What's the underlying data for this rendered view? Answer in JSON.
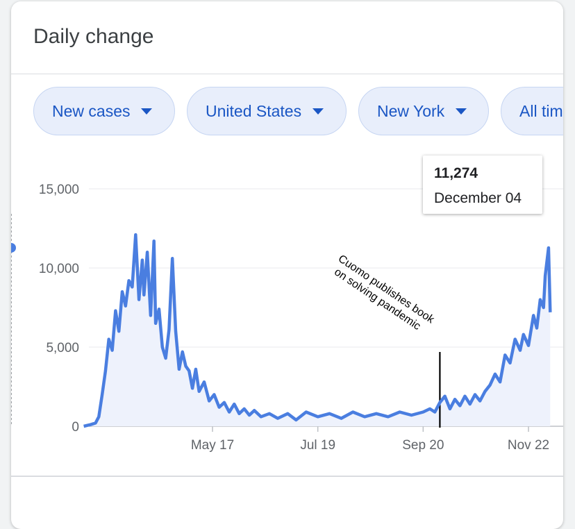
{
  "header": {
    "title": "Daily change"
  },
  "filters": [
    {
      "label": "New cases"
    },
    {
      "label": "United States"
    },
    {
      "label": "New York"
    },
    {
      "label": "All tim"
    }
  ],
  "tooltip": {
    "value": "11,274",
    "date": "December 04"
  },
  "annotation": {
    "line1": "Cuomo publishes book",
    "line2": "on solving pandemic"
  },
  "colors": {
    "line": "#4a7ee0",
    "fill": "#eef2fc",
    "chip_bg": "#e8eefb",
    "chip_text": "#1a56c4"
  },
  "chart_data": {
    "type": "line",
    "title": "",
    "xlabel": "",
    "ylabel": "",
    "ylim": [
      0,
      15000
    ],
    "yticks": [
      "15,000",
      "10,000",
      "5,000",
      "0"
    ],
    "yticks_values": [
      15000,
      10000,
      5000,
      0
    ],
    "xticks": [
      "May 17",
      "Jul 19",
      "Sep 20",
      "Nov 22"
    ],
    "highlight": {
      "date": "December 04",
      "value": 11274
    },
    "annotation_date": "Sep 30",
    "series": [
      {
        "values": [
          [
            "Mar 01",
            0
          ],
          [
            "Mar 05",
            100
          ],
          [
            "Mar 08",
            200
          ],
          [
            "Mar 10",
            600
          ],
          [
            "Mar 12",
            2000
          ],
          [
            "Mar 14",
            3500
          ],
          [
            "Mar 16",
            5500
          ],
          [
            "Mar 18",
            4800
          ],
          [
            "Mar 20",
            7300
          ],
          [
            "Mar 22",
            6000
          ],
          [
            "Mar 24",
            8500
          ],
          [
            "Mar 26",
            7600
          ],
          [
            "Mar 28",
            9200
          ],
          [
            "Mar 30",
            8800
          ],
          [
            "Apr 01",
            12100
          ],
          [
            "Apr 03",
            8000
          ],
          [
            "Apr 05",
            10500
          ],
          [
            "Apr 06",
            8300
          ],
          [
            "Apr 08",
            11000
          ],
          [
            "Apr 10",
            7000
          ],
          [
            "Apr 12",
            11700
          ],
          [
            "Apr 13",
            6500
          ],
          [
            "Apr 15",
            7400
          ],
          [
            "Apr 17",
            5000
          ],
          [
            "Apr 19",
            4300
          ],
          [
            "Apr 21",
            6100
          ],
          [
            "Apr 23",
            10600
          ],
          [
            "Apr 25",
            6000
          ],
          [
            "Apr 27",
            3600
          ],
          [
            "Apr 29",
            4700
          ],
          [
            "May 01",
            3800
          ],
          [
            "May 03",
            3500
          ],
          [
            "May 05",
            2400
          ],
          [
            "May 07",
            3600
          ],
          [
            "May 09",
            2200
          ],
          [
            "May 12",
            2800
          ],
          [
            "May 15",
            1600
          ],
          [
            "May 18",
            2000
          ],
          [
            "May 21",
            1200
          ],
          [
            "May 24",
            1500
          ],
          [
            "May 27",
            900
          ],
          [
            "May 30",
            1400
          ],
          [
            "Jun 02",
            800
          ],
          [
            "Jun 05",
            1100
          ],
          [
            "Jun 08",
            700
          ],
          [
            "Jun 11",
            1000
          ],
          [
            "Jun 15",
            600
          ],
          [
            "Jun 20",
            800
          ],
          [
            "Jun 25",
            500
          ],
          [
            "Jul 01",
            800
          ],
          [
            "Jul 06",
            400
          ],
          [
            "Jul 12",
            900
          ],
          [
            "Jul 19",
            600
          ],
          [
            "Jul 26",
            800
          ],
          [
            "Aug 02",
            500
          ],
          [
            "Aug 09",
            900
          ],
          [
            "Aug 16",
            600
          ],
          [
            "Aug 23",
            800
          ],
          [
            "Aug 30",
            600
          ],
          [
            "Sep 06",
            900
          ],
          [
            "Sep 13",
            700
          ],
          [
            "Sep 20",
            900
          ],
          [
            "Sep 24",
            1100
          ],
          [
            "Sep 27",
            900
          ],
          [
            "Sep 30",
            1500
          ],
          [
            "Oct 03",
            1900
          ],
          [
            "Oct 06",
            1100
          ],
          [
            "Oct 09",
            1700
          ],
          [
            "Oct 12",
            1300
          ],
          [
            "Oct 15",
            1900
          ],
          [
            "Oct 18",
            1400
          ],
          [
            "Oct 21",
            2000
          ],
          [
            "Oct 24",
            1600
          ],
          [
            "Oct 27",
            2200
          ],
          [
            "Oct 30",
            2600
          ],
          [
            "Nov 02",
            3300
          ],
          [
            "Nov 05",
            2800
          ],
          [
            "Nov 08",
            4500
          ],
          [
            "Nov 11",
            4000
          ],
          [
            "Nov 14",
            5500
          ],
          [
            "Nov 17",
            4800
          ],
          [
            "Nov 19",
            5800
          ],
          [
            "Nov 22",
            5100
          ],
          [
            "Nov 25",
            7000
          ],
          [
            "Nov 27",
            6200
          ],
          [
            "Nov 29",
            8000
          ],
          [
            "Dec 01",
            7500
          ],
          [
            "Dec 02",
            9500
          ],
          [
            "Dec 04",
            11274
          ],
          [
            "Dec 05",
            7200
          ]
        ]
      }
    ]
  }
}
